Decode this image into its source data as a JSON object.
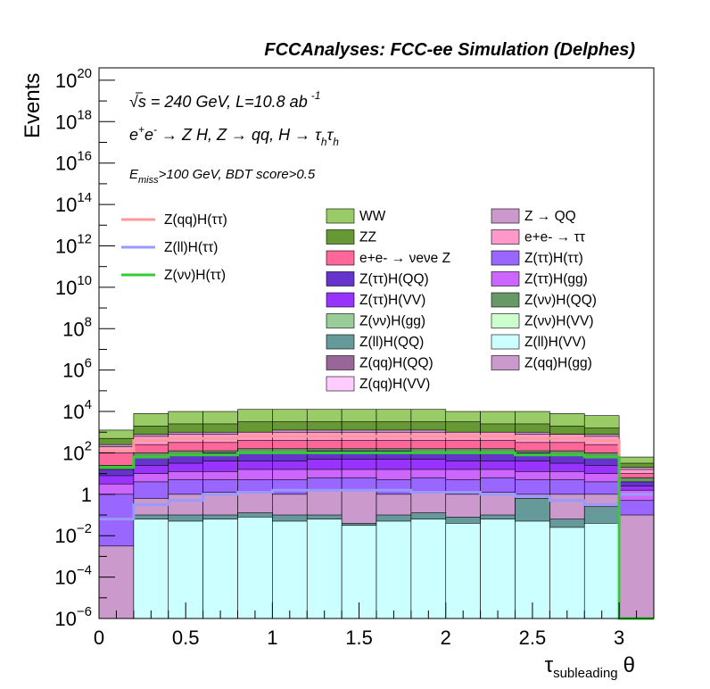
{
  "chart_data": {
    "type": "area",
    "title": "FCCAnalyses: FCC-ee Simulation (Delphes)",
    "xlabel_main": "τ",
    "xlabel_sub": "subleading",
    "xlabel_tail": "θ",
    "ylabel": "Events",
    "yscale": "log",
    "xlim": [
      0,
      3.2
    ],
    "ylim_exp": [
      -6,
      20.6
    ],
    "annotations": {
      "energy_sqrt": "s",
      "energy_rest": " = 240 GeV, L=10.8 ab",
      "energy_exp": "-1",
      "process_pre": "e",
      "process_sup1": "+",
      "process_mid": "e",
      "process_sup2": "-",
      "process_rest": " → Z H, Z  → qq, H  → τ",
      "process_sub1": "h",
      "process_tau2": "τ",
      "process_sub2": "h",
      "cut_E": "E",
      "cut_sub": "miss",
      "cut_rest": ">100 GeV, BDT score>0.5"
    },
    "x_ticks": [
      {
        "v": 0,
        "label": "0"
      },
      {
        "v": 0.5,
        "label": "0.5"
      },
      {
        "v": 1,
        "label": "1"
      },
      {
        "v": 1.5,
        "label": "1.5"
      },
      {
        "v": 2,
        "label": "2"
      },
      {
        "v": 2.5,
        "label": "2.5"
      },
      {
        "v": 3,
        "label": "3"
      }
    ],
    "y_ticks": [
      {
        "v": -6,
        "base": "10",
        "exp": "−6"
      },
      {
        "v": -4,
        "base": "10",
        "exp": "−4"
      },
      {
        "v": -2,
        "base": "10",
        "exp": "−2"
      },
      {
        "v": 0,
        "base": "1",
        "exp": ""
      },
      {
        "v": 2,
        "base": "10",
        "exp": "2"
      },
      {
        "v": 4,
        "base": "10",
        "exp": "4"
      },
      {
        "v": 6,
        "base": "10",
        "exp": "6"
      },
      {
        "v": 8,
        "base": "10",
        "exp": "8"
      },
      {
        "v": 10,
        "base": "10",
        "exp": "10"
      },
      {
        "v": 12,
        "base": "10",
        "exp": "12"
      },
      {
        "v": 14,
        "base": "10",
        "exp": "14"
      },
      {
        "v": 16,
        "base": "10",
        "exp": "16"
      },
      {
        "v": 18,
        "base": "10",
        "exp": "18"
      },
      {
        "v": 20,
        "base": "10",
        "exp": "20"
      }
    ],
    "bins": [
      0,
      0.2,
      0.4,
      0.6,
      0.8,
      1.0,
      1.2,
      1.4,
      1.6,
      1.8,
      2.0,
      2.2,
      2.4,
      2.6,
      2.8,
      3.0,
      3.2
    ],
    "stack_top_log10": [
      {
        "name": "Z(ll)H(VV)",
        "color": "#ccffff",
        "values": [
          -6,
          -1.2,
          -1.3,
          -1.2,
          -1.1,
          -1.3,
          -1.2,
          -1.5,
          -1.3,
          -1.2,
          -1.4,
          -1.2,
          -1.3,
          -1.6,
          -1.4,
          -6
        ]
      },
      {
        "name": "Z(ll)H(QQ)",
        "color": "#669999",
        "values": [
          -6,
          -1.0,
          -1.0,
          -1.0,
          -0.9,
          -1.0,
          -1.0,
          -1.4,
          -1.0,
          -0.9,
          -1.1,
          -1.0,
          -0.2,
          -1.2,
          -0.6,
          -6
        ]
      },
      {
        "name": "Z(qq)H(gg)",
        "color": "#cc99cc",
        "values": [
          -2.5,
          -0.2,
          0.0,
          0.1,
          0.1,
          0.0,
          0.2,
          0.2,
          0.0,
          0.1,
          0.0,
          0.1,
          0.0,
          0.0,
          0.0,
          -1.0
        ]
      },
      {
        "name": "Z(ττ)H(ττ)",
        "color": "#9966ff",
        "values": [
          0.0,
          0.6,
          0.7,
          0.7,
          0.7,
          0.7,
          0.8,
          0.8,
          0.7,
          0.8,
          0.7,
          0.8,
          0.7,
          0.7,
          0.6,
          -0.3
        ]
      },
      {
        "name": "Z(ττ)H(gg)",
        "color": "#cc66ff",
        "values": [
          0.5,
          1.0,
          1.1,
          1.1,
          1.2,
          1.2,
          1.2,
          1.2,
          1.2,
          1.2,
          1.2,
          1.2,
          1.1,
          1.1,
          1.0,
          0.2
        ]
      },
      {
        "name": "Z(ττ)H(VV)",
        "color": "#9933ff",
        "values": [
          0.9,
          1.4,
          1.5,
          1.6,
          1.6,
          1.6,
          1.7,
          1.7,
          1.7,
          1.7,
          1.6,
          1.6,
          1.6,
          1.5,
          1.4,
          0.4
        ]
      },
      {
        "name": "Z(ττ)H(QQ)",
        "color": "#6633cc",
        "values": [
          1.2,
          1.8,
          1.9,
          2.0,
          2.0,
          2.0,
          2.1,
          2.1,
          2.1,
          2.0,
          2.0,
          2.0,
          2.0,
          1.9,
          1.8,
          0.6
        ]
      },
      {
        "name": "Z(νν)H(QQ)",
        "color": "#669966",
        "values": [
          1.4,
          2.0,
          2.1,
          2.1,
          2.2,
          2.2,
          2.2,
          2.2,
          2.2,
          2.2,
          2.2,
          2.2,
          2.1,
          2.1,
          2.0,
          0.8
        ]
      },
      {
        "name": "e+e- → νeνe Z",
        "color": "#ff6699",
        "values": [
          2.0,
          2.4,
          2.5,
          2.5,
          2.6,
          2.6,
          2.6,
          2.6,
          2.6,
          2.6,
          2.6,
          2.6,
          2.5,
          2.5,
          2.4,
          1.0
        ]
      },
      {
        "name": "e+e- → ττ",
        "color": "#ff99cc",
        "values": [
          2.3,
          2.8,
          2.9,
          2.9,
          3.0,
          3.0,
          3.0,
          3.0,
          3.0,
          3.0,
          3.0,
          3.0,
          2.9,
          2.9,
          2.8,
          1.2
        ]
      },
      {
        "name": "Z → QQ",
        "color": "#cc99cc",
        "values": [
          2.4,
          2.9,
          3.0,
          3.0,
          3.0,
          3.1,
          3.1,
          3.1,
          3.1,
          3.1,
          3.0,
          3.0,
          3.0,
          2.9,
          2.9,
          1.3
        ]
      },
      {
        "name": "ZZ",
        "color": "#669933",
        "values": [
          2.7,
          3.3,
          3.4,
          3.4,
          3.5,
          3.5,
          3.5,
          3.5,
          3.5,
          3.5,
          3.5,
          3.4,
          3.4,
          3.3,
          3.2,
          1.5
        ]
      },
      {
        "name": "WW",
        "color": "#99cc66",
        "values": [
          3.1,
          3.9,
          4.0,
          4.0,
          4.1,
          4.1,
          4.1,
          4.1,
          4.1,
          4.1,
          4.0,
          4.0,
          4.0,
          3.9,
          3.8,
          1.8
        ]
      }
    ],
    "signals_log10": [
      {
        "name": "Z(qq)H(ττ)",
        "color": "#ff9999",
        "values": [
          2.1,
          2.6,
          2.7,
          2.7,
          2.8,
          2.8,
          2.8,
          2.8,
          2.8,
          2.8,
          2.8,
          2.8,
          2.7,
          2.7,
          2.6,
          0.0
        ]
      },
      {
        "name": "Z(ll)H(ττ)",
        "color": "#9999ff",
        "values": [
          -1.2,
          -0.5,
          -0.3,
          0.0,
          0.1,
          0.2,
          0.2,
          0.2,
          0.2,
          0.1,
          0.1,
          0.0,
          -0.1,
          -0.3,
          -0.5,
          0.0
        ]
      },
      {
        "name": "Z(νν)H(ττ)",
        "color": "#33cc33",
        "values": [
          1.3,
          1.8,
          1.9,
          1.9,
          2.0,
          2.0,
          2.0,
          2.0,
          2.0,
          2.0,
          2.0,
          2.0,
          1.9,
          1.9,
          1.8,
          -6.0
        ]
      }
    ],
    "legend_left": [
      {
        "name": "Z(qq)H(ττ)",
        "color": "#ff9999"
      },
      {
        "name": "Z(ll)H(ττ)",
        "color": "#9999ff"
      },
      {
        "name": "Z(νν)H(ττ)",
        "color": "#33cc33"
      }
    ],
    "legend_boxes": [
      {
        "name": "WW",
        "color": "#99cc66"
      },
      {
        "name": "Z → QQ",
        "color": "#cc99cc"
      },
      {
        "name": "ZZ",
        "color": "#669933"
      },
      {
        "name": "e+e- → ττ",
        "color": "#ff99cc"
      },
      {
        "name": "e+e- → νeνe Z",
        "color": "#ff6699"
      },
      {
        "name": "Z(ττ)H(ττ)",
        "color": "#9966ff"
      },
      {
        "name": "Z(ττ)H(QQ)",
        "color": "#6633cc"
      },
      {
        "name": "Z(ττ)H(gg)",
        "color": "#cc66ff"
      },
      {
        "name": "Z(ττ)H(VV)",
        "color": "#9933ff"
      },
      {
        "name": "Z(νν)H(QQ)",
        "color": "#669966"
      },
      {
        "name": "Z(νν)H(gg)",
        "color": "#99cc99"
      },
      {
        "name": "Z(νν)H(VV)",
        "color": "#ccffcc"
      },
      {
        "name": "Z(ll)H(QQ)",
        "color": "#669999"
      },
      {
        "name": "Z(ll)H(VV)",
        "color": "#ccffff"
      },
      {
        "name": "Z(qq)H(QQ)",
        "color": "#996699"
      },
      {
        "name": "Z(qq)H(gg)",
        "color": "#cc99cc"
      },
      {
        "name": "Z(qq)H(VV)",
        "color": "#ffccff"
      }
    ]
  }
}
